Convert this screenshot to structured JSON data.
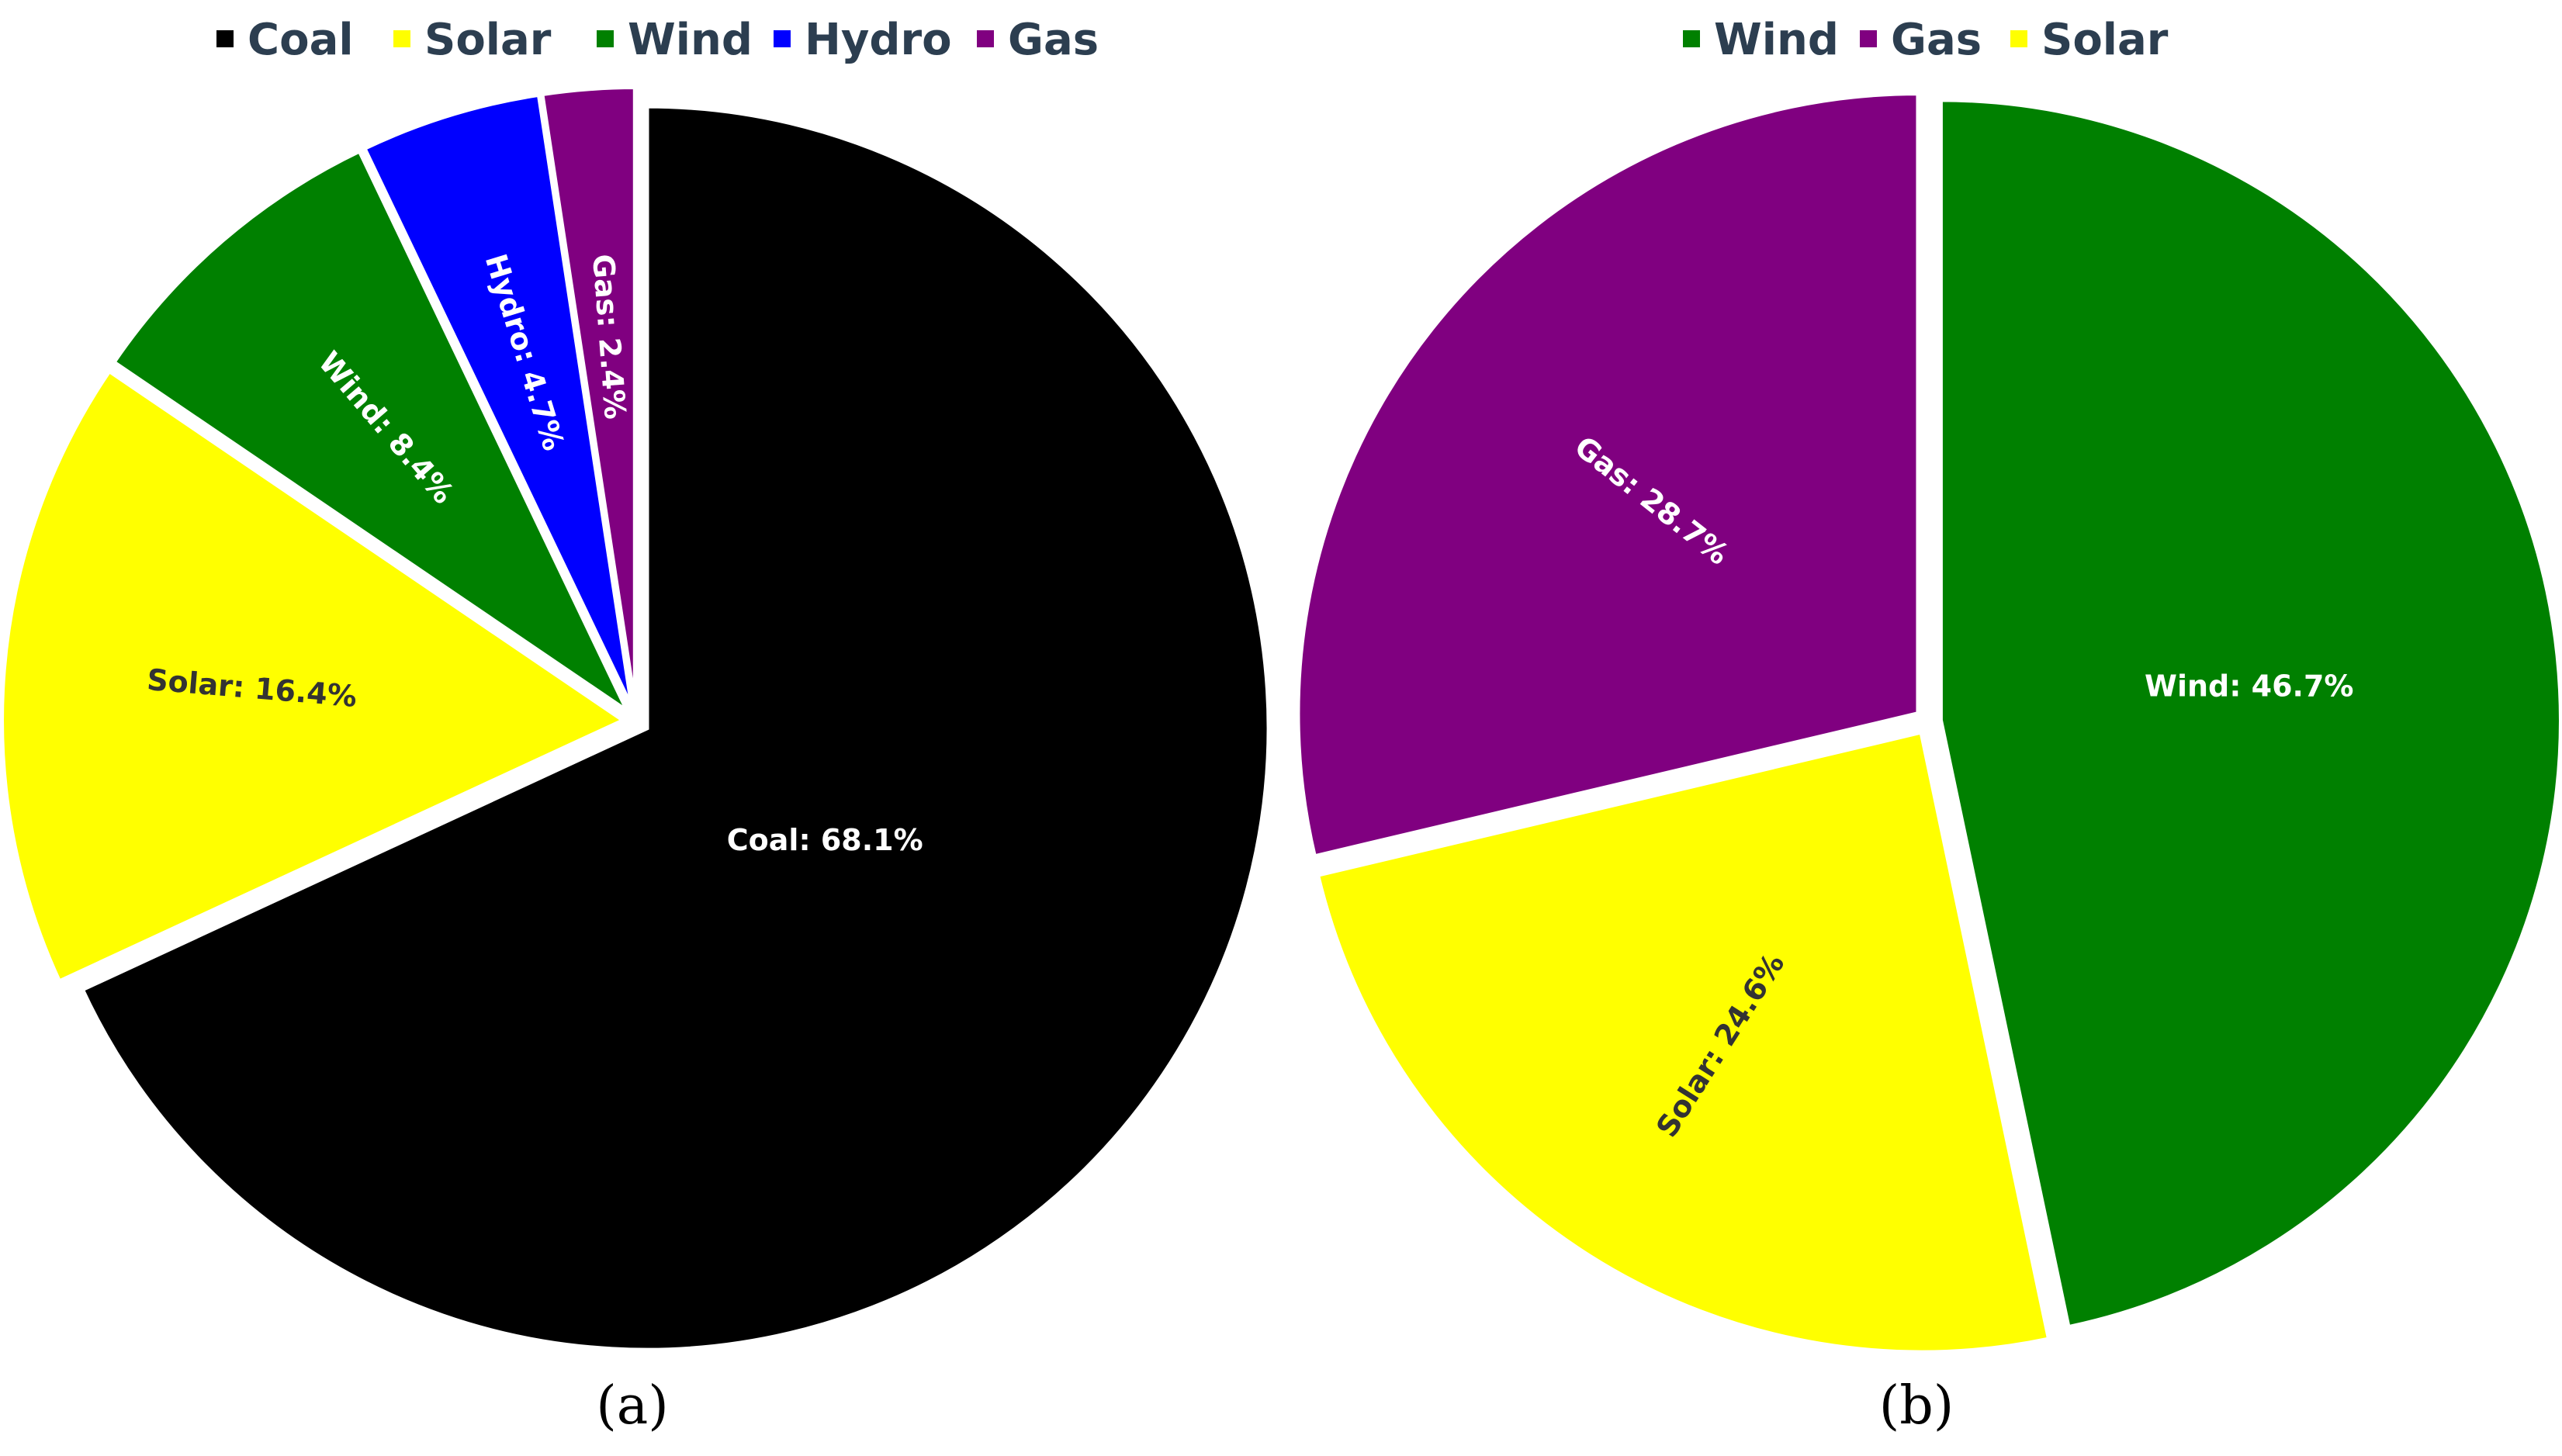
{
  "chart_data": [
    {
      "type": "pie",
      "caption": "(a)",
      "legend_placement": "top",
      "legend": [
        "Coal",
        "Solar",
        "Wind",
        "Hydro",
        "Gas"
      ],
      "slices": [
        {
          "name": "Coal",
          "value": 68.1,
          "label": "Coal: 68.1%",
          "color": "#000000",
          "label_color": "#ffffff"
        },
        {
          "name": "Solar",
          "value": 16.4,
          "label": "Solar: 16.4%",
          "color": "#ffff00",
          "label_color": "#333333"
        },
        {
          "name": "Wind",
          "value": 8.4,
          "label": "Wind: 8.4%",
          "color": "#008000",
          "label_color": "#ffffff"
        },
        {
          "name": "Hydro",
          "value": 4.7,
          "label": "Hydro: 4.7%",
          "color": "#0000ff",
          "label_color": "#ffffff"
        },
        {
          "name": "Gas",
          "value": 2.4,
          "label": "Gas: 2.4%",
          "color": "#800080",
          "label_color": "#ffffff"
        }
      ]
    },
    {
      "type": "pie",
      "caption": "(b)",
      "legend_placement": "top",
      "legend": [
        "Wind",
        "Gas",
        "Solar"
      ],
      "slices": [
        {
          "name": "Wind",
          "value": 46.7,
          "label": "Wind: 46.7%",
          "color": "#008000",
          "label_color": "#ffffff"
        },
        {
          "name": "Solar",
          "value": 24.6,
          "label": "Solar: 24.6%",
          "color": "#ffff00",
          "label_color": "#333333"
        },
        {
          "name": "Gas",
          "value": 28.7,
          "label": "Gas: 28.7%",
          "color": "#800080",
          "label_color": "#ffffff"
        }
      ]
    }
  ]
}
